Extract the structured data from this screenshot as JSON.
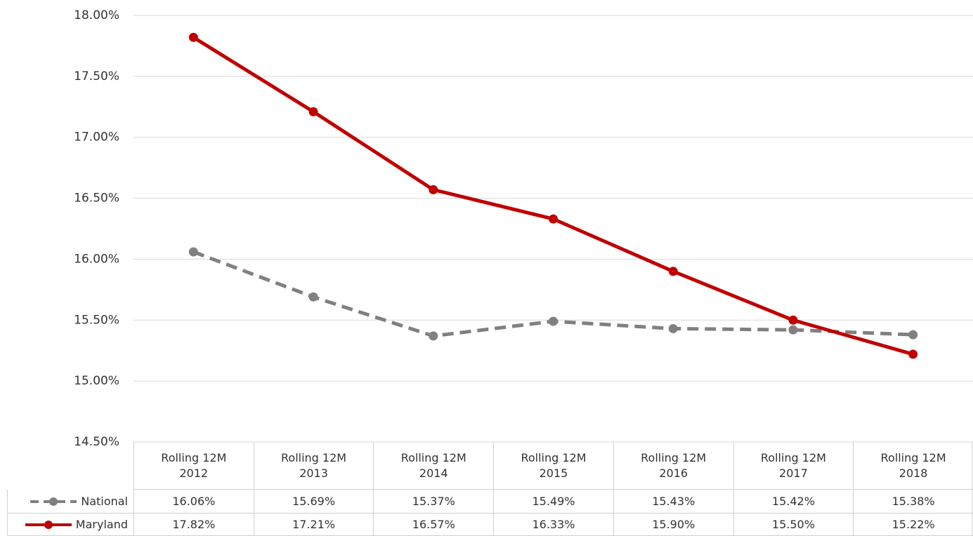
{
  "chart_data": {
    "type": "line",
    "categories": [
      "Rolling 12M 2012",
      "Rolling 12M 2013",
      "Rolling 12M 2014",
      "Rolling 12M 2015",
      "Rolling 12M 2016",
      "Rolling 12M 2017",
      "Rolling 12M 2018"
    ],
    "series": [
      {
        "name": "National",
        "color": "#808080",
        "dashed": true,
        "values": [
          16.06,
          15.69,
          15.37,
          15.49,
          15.43,
          15.42,
          15.38
        ],
        "value_labels": [
          "16.06%",
          "15.69%",
          "15.37%",
          "15.49%",
          "15.43%",
          "15.42%",
          "15.38%"
        ]
      },
      {
        "name": "Maryland",
        "color": "#c00000",
        "dashed": false,
        "values": [
          17.82,
          17.21,
          16.57,
          16.33,
          15.9,
          15.5,
          15.22
        ],
        "value_labels": [
          "17.82%",
          "17.21%",
          "16.57%",
          "16.33%",
          "15.90%",
          "15.50%",
          "15.22%"
        ]
      }
    ],
    "ylim": [
      14.5,
      18
    ],
    "yticks": [
      {
        "value": 14.5,
        "label": "14.50%"
      },
      {
        "value": 15,
        "label": "15.00%"
      },
      {
        "value": 15.5,
        "label": "15.50%"
      },
      {
        "value": 16,
        "label": "16.00%"
      },
      {
        "value": 16.5,
        "label": "16.50%"
      },
      {
        "value": 17,
        "label": "17.00%"
      },
      {
        "value": 17.5,
        "label": "17.50%"
      },
      {
        "value": 18,
        "label": "18.00%"
      }
    ],
    "grid": true
  }
}
